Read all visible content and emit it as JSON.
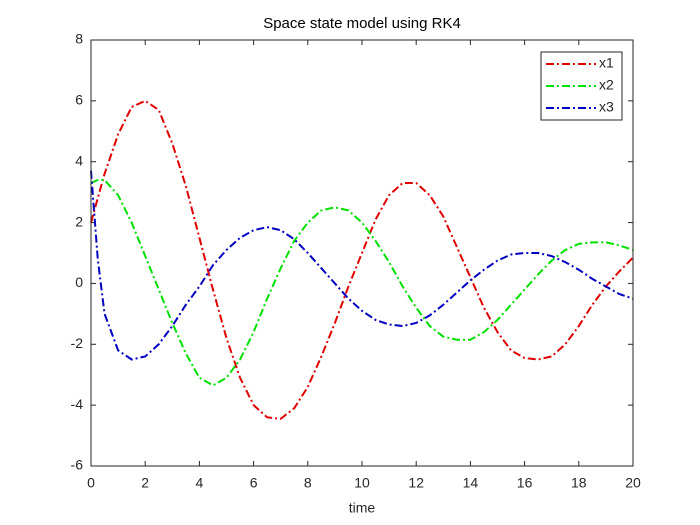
{
  "chart_data": {
    "type": "line",
    "title": "Space state model using RK4",
    "x_label": "time",
    "x": [
      0,
      0.25,
      0.5,
      1,
      1.5,
      2,
      2.5,
      3,
      3.5,
      4,
      4.5,
      5,
      5.5,
      6,
      6.5,
      7,
      7.5,
      8,
      8.5,
      9,
      9.5,
      10,
      10.5,
      11,
      11.5,
      12,
      12.5,
      13,
      13.5,
      14,
      14.5,
      15,
      15.5,
      16,
      16.5,
      17,
      17.5,
      18,
      18.5,
      19,
      19.5,
      20
    ],
    "series": [
      {
        "name": "x1",
        "color": "#e00000",
        "values": [
          2,
          2.8,
          3.6,
          4.9,
          5.8,
          6.0,
          5.7,
          4.6,
          3.2,
          1.5,
          -0.2,
          -1.8,
          -3.1,
          -4.0,
          -4.4,
          -4.45,
          -4.1,
          -3.4,
          -2.4,
          -1.3,
          -0.1,
          1.0,
          2.1,
          2.9,
          3.3,
          3.3,
          2.9,
          2.2,
          1.2,
          0.2,
          -0.8,
          -1.6,
          -2.2,
          -2.45,
          -2.5,
          -2.4,
          -2.0,
          -1.4,
          -0.7,
          -0.1,
          0.4,
          0.85
        ]
      },
      {
        "name": "x2",
        "color": "#00e000",
        "values": [
          3.3,
          3.4,
          3.4,
          2.9,
          2.0,
          0.9,
          -0.2,
          -1.3,
          -2.3,
          -3.1,
          -3.35,
          -3.1,
          -2.5,
          -1.6,
          -0.5,
          0.5,
          1.4,
          2.0,
          2.4,
          2.5,
          2.4,
          2.0,
          1.4,
          0.7,
          -0.1,
          -0.8,
          -1.4,
          -1.75,
          -1.85,
          -1.85,
          -1.6,
          -1.2,
          -0.7,
          -0.2,
          0.3,
          0.75,
          1.1,
          1.3,
          1.35,
          1.35,
          1.25,
          1.1
        ]
      },
      {
        "name": "x3",
        "color": "#0000c0",
        "values": [
          3.7,
          0.8,
          -1.0,
          -2.2,
          -2.5,
          -2.4,
          -2.0,
          -1.4,
          -0.7,
          -0.1,
          0.6,
          1.1,
          1.5,
          1.75,
          1.85,
          1.75,
          1.45,
          1.0,
          0.5,
          0.0,
          -0.5,
          -0.9,
          -1.2,
          -1.35,
          -1.4,
          -1.3,
          -1.05,
          -0.7,
          -0.3,
          0.1,
          0.45,
          0.75,
          0.95,
          1.0,
          1.0,
          0.9,
          0.7,
          0.45,
          0.15,
          -0.1,
          -0.35,
          -0.5
        ]
      }
    ],
    "xlim": [
      0,
      20
    ],
    "xticks": [
      0,
      2,
      4,
      6,
      8,
      10,
      12,
      14,
      16,
      18,
      20
    ],
    "ylim": [
      -6,
      8
    ],
    "yticks": [
      -6,
      -4,
      -2,
      0,
      2,
      4,
      6,
      8
    ],
    "grid": false,
    "legend": "top-right"
  }
}
